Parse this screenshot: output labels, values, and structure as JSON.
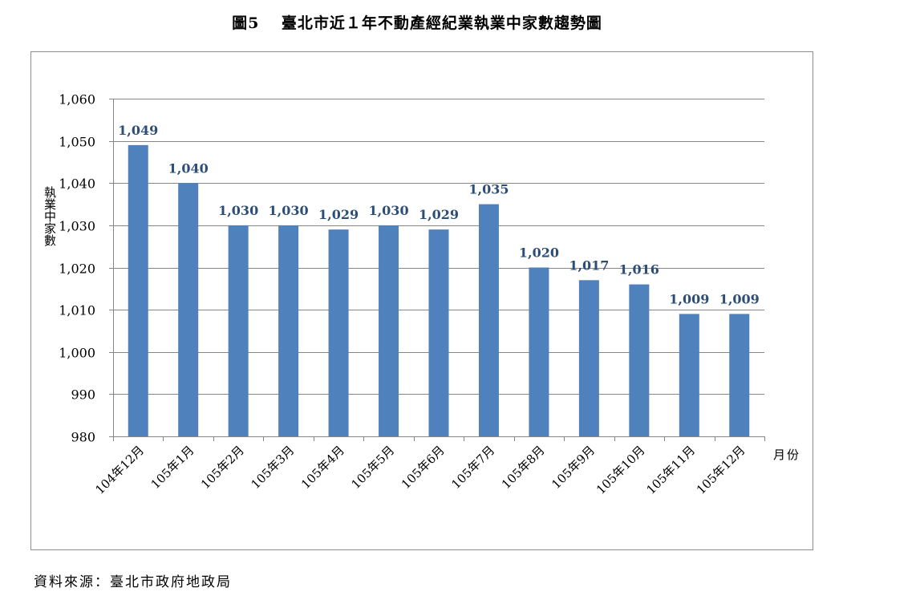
{
  "chart_data": {
    "type": "bar",
    "title": "圖5　 臺北市近１年不動產經紀業執業中家數趨勢圖",
    "ylabel": "執業中家數",
    "xlabel": "月份",
    "ylim": [
      980,
      1060
    ],
    "yticks": [
      980,
      990,
      1000,
      1010,
      1020,
      1030,
      1040,
      1050,
      1060
    ],
    "ytick_labels": [
      "980",
      "990",
      "1,000",
      "1,010",
      "1,020",
      "1,030",
      "1,040",
      "1,050",
      "1,060"
    ],
    "categories": [
      "104年12月",
      "105年1月",
      "105年2月",
      "105年3月",
      "105年4月",
      "105年5月",
      "105年6月",
      "105年7月",
      "105年8月",
      "105年9月",
      "105年10月",
      "105年11月",
      "105年12月"
    ],
    "values": [
      1049,
      1040,
      1030,
      1030,
      1029,
      1030,
      1029,
      1035,
      1020,
      1017,
      1016,
      1009,
      1009
    ],
    "data_labels": [
      "1,049",
      "1,040",
      "1,030",
      "1,030",
      "1,029",
      "1,030",
      "1,029",
      "1,035",
      "1,020",
      "1,017",
      "1,016",
      "1,009",
      "1,009"
    ],
    "grid": true,
    "legend": "none",
    "bar_color": "#4f81bd",
    "label_color": "#2c4d75",
    "grid_color": "#868686"
  },
  "source_note": "資料來源：臺北市政府地政局"
}
